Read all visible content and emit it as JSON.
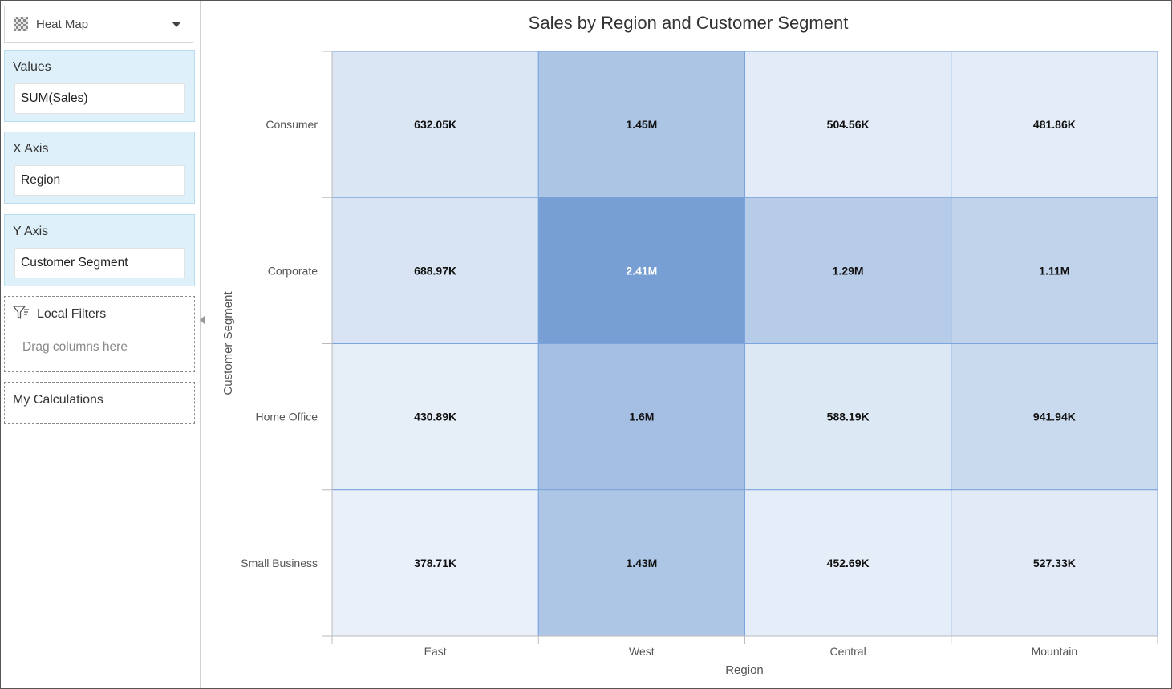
{
  "sidebar": {
    "chart_type": {
      "label": "Heat Map",
      "icon": "checkerboard-icon"
    },
    "values": {
      "title": "Values",
      "field": "SUM(Sales)"
    },
    "x_axis": {
      "title": "X Axis",
      "field": "Region"
    },
    "y_axis": {
      "title": "Y Axis",
      "field": "Customer Segment"
    },
    "local_filters": {
      "title": "Local Filters",
      "hint": "Drag columns here"
    },
    "my_calculations": {
      "title": "My Calculations"
    }
  },
  "chart_data": {
    "type": "heatmap",
    "title": "Sales by Region and Customer Segment",
    "xlabel": "Region",
    "ylabel": "Customer Segment",
    "x": [
      "East",
      "West",
      "Central",
      "Mountain"
    ],
    "y": [
      "Consumer",
      "Corporate",
      "Home Office",
      "Small Business"
    ],
    "values": [
      [
        632050,
        1450000,
        504560,
        481860
      ],
      [
        688970,
        2410000,
        1290000,
        1110000
      ],
      [
        430890,
        1600000,
        588190,
        941940
      ],
      [
        378710,
        1430000,
        452690,
        527330
      ]
    ],
    "labels": [
      [
        "632.05K",
        "1.45M",
        "504.56K",
        "481.86K"
      ],
      [
        "688.97K",
        "2.41M",
        "1.29M",
        "1.11M"
      ],
      [
        "430.89K",
        "1.6M",
        "588.19K",
        "941.94K"
      ],
      [
        "378.71K",
        "1.43M",
        "452.69K",
        "527.33K"
      ]
    ],
    "colors": {
      "low": "#e9f0f9",
      "high": "#779fd3",
      "grid": "#7ba3dd",
      "label_dark": "#111111",
      "label_light": "#ffffff"
    }
  }
}
